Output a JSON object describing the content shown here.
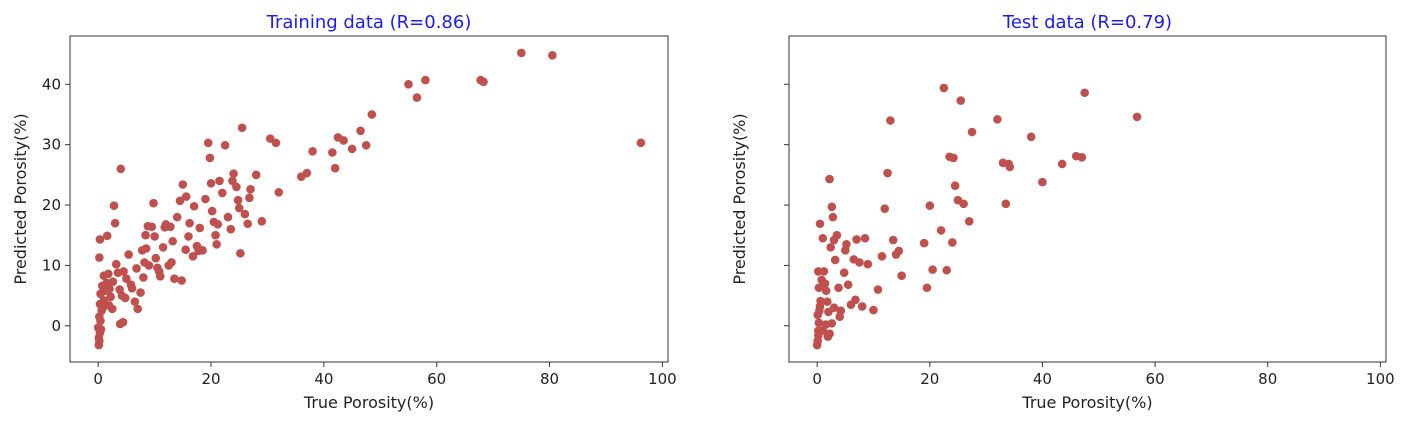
{
  "point_color": "#c0504d",
  "title_color": "#1a1aff",
  "chart_data": [
    {
      "type": "scatter",
      "title": "Training data (R=0.86)",
      "xlabel": "True Porosity(%)",
      "ylabel": "Predicted Porosity(%)",
      "xlim": [
        -5,
        101
      ],
      "ylim": [
        -6,
        48
      ],
      "xticks": [
        0,
        20,
        40,
        60,
        80,
        100
      ],
      "yticks": [
        0,
        10,
        20,
        30,
        40
      ],
      "ytick_labels_shown": true,
      "grid": false,
      "points": [
        [
          0.1,
          -3.2
        ],
        [
          0.2,
          -2.5
        ],
        [
          0.1,
          -2.0
        ],
        [
          0.3,
          -1.2
        ],
        [
          0.0,
          -0.3
        ],
        [
          0.4,
          0.8
        ],
        [
          0.5,
          -0.6
        ],
        [
          0.2,
          1.5
        ],
        [
          0.6,
          2.5
        ],
        [
          0.3,
          3.6
        ],
        [
          0.8,
          3.0
        ],
        [
          1.0,
          4.2
        ],
        [
          0.4,
          5.3
        ],
        [
          1.2,
          5.8
        ],
        [
          0.7,
          6.6
        ],
        [
          1.5,
          7.1
        ],
        [
          0.2,
          11.3
        ],
        [
          0.3,
          14.3
        ],
        [
          1.6,
          14.9
        ],
        [
          1.0,
          8.3
        ],
        [
          1.8,
          8.6
        ],
        [
          2.0,
          6.1
        ],
        [
          2.2,
          4.8
        ],
        [
          1.9,
          3.4
        ],
        [
          2.5,
          2.8
        ],
        [
          2.8,
          19.9
        ],
        [
          3.0,
          17.0
        ],
        [
          4.0,
          26.0
        ],
        [
          3.2,
          10.2
        ],
        [
          3.5,
          8.8
        ],
        [
          2.6,
          7.3
        ],
        [
          3.8,
          6.0
        ],
        [
          4.2,
          5.0
        ],
        [
          4.5,
          9.0
        ],
        [
          5.0,
          7.8
        ],
        [
          5.4,
          11.8
        ],
        [
          4.8,
          4.6
        ],
        [
          3.9,
          0.3
        ],
        [
          4.4,
          0.6
        ],
        [
          6.0,
          6.2
        ],
        [
          6.5,
          4.0
        ],
        [
          7.0,
          2.8
        ],
        [
          7.5,
          5.5
        ],
        [
          8.0,
          8.0
        ],
        [
          8.2,
          10.5
        ],
        [
          8.5,
          12.8
        ],
        [
          8.8,
          16.5
        ],
        [
          9.5,
          16.4
        ],
        [
          9.8,
          20.3
        ],
        [
          10.0,
          14.8
        ],
        [
          10.2,
          11.2
        ],
        [
          10.5,
          9.6
        ],
        [
          11.0,
          8.2
        ],
        [
          11.5,
          13.0
        ],
        [
          12.0,
          16.8
        ],
        [
          12.5,
          10.0
        ],
        [
          13.0,
          10.5
        ],
        [
          13.5,
          7.8
        ],
        [
          14.0,
          18.0
        ],
        [
          14.5,
          20.7
        ],
        [
          15.0,
          23.4
        ],
        [
          15.5,
          12.6
        ],
        [
          16.0,
          14.8
        ],
        [
          16.2,
          17.0
        ],
        [
          16.8,
          11.5
        ],
        [
          17.0,
          19.8
        ],
        [
          17.5,
          13.2
        ],
        [
          18.0,
          16.2
        ],
        [
          18.5,
          12.5
        ],
        [
          19.0,
          21.0
        ],
        [
          19.5,
          30.3
        ],
        [
          19.8,
          27.8
        ],
        [
          20.0,
          23.6
        ],
        [
          20.2,
          19.0
        ],
        [
          20.5,
          17.2
        ],
        [
          20.8,
          15.0
        ],
        [
          21.0,
          13.5
        ],
        [
          21.5,
          24.0
        ],
        [
          22.0,
          22.0
        ],
        [
          22.5,
          29.9
        ],
        [
          23.0,
          18.0
        ],
        [
          23.5,
          16.0
        ],
        [
          24.0,
          25.2
        ],
        [
          24.5,
          23.0
        ],
        [
          25.0,
          19.5
        ],
        [
          25.2,
          12.0
        ],
        [
          25.5,
          32.8
        ],
        [
          26.0,
          18.5
        ],
        [
          26.5,
          16.9
        ],
        [
          27.0,
          22.6
        ],
        [
          28.0,
          25.0
        ],
        [
          29.0,
          17.3
        ],
        [
          30.5,
          31.0
        ],
        [
          31.5,
          30.3
        ],
        [
          32.0,
          22.1
        ],
        [
          36.0,
          24.7
        ],
        [
          37.0,
          25.3
        ],
        [
          38.0,
          28.9
        ],
        [
          41.5,
          28.7
        ],
        [
          42.0,
          26.1
        ],
        [
          42.5,
          31.2
        ],
        [
          43.5,
          30.7
        ],
        [
          45.0,
          29.3
        ],
        [
          46.5,
          32.3
        ],
        [
          47.5,
          29.9
        ],
        [
          48.5,
          35.0
        ],
        [
          55.0,
          40.0
        ],
        [
          56.5,
          37.8
        ],
        [
          58.0,
          40.7
        ],
        [
          67.8,
          40.7
        ],
        [
          68.3,
          40.4
        ],
        [
          75.0,
          45.2
        ],
        [
          80.5,
          44.8
        ],
        [
          96.2,
          30.3
        ],
        [
          11.8,
          16.3
        ],
        [
          13.2,
          14.0
        ],
        [
          14.8,
          7.5
        ],
        [
          15.6,
          21.4
        ],
        [
          17.8,
          12.4
        ],
        [
          21.2,
          16.8
        ],
        [
          23.8,
          24.0
        ],
        [
          24.8,
          20.8
        ],
        [
          26.8,
          21.2
        ],
        [
          9.0,
          10.0
        ],
        [
          10.8,
          9.0
        ],
        [
          12.8,
          16.4
        ],
        [
          7.8,
          12.5
        ],
        [
          8.4,
          15.0
        ],
        [
          6.8,
          9.5
        ],
        [
          5.8,
          6.8
        ]
      ]
    },
    {
      "type": "scatter",
      "title": "Test data (R=0.79)",
      "xlabel": "True Porosity(%)",
      "ylabel": "Predicted Porosity(%)",
      "xlim": [
        -5,
        101
      ],
      "ylim": [
        -6,
        48
      ],
      "xticks": [
        0,
        20,
        40,
        60,
        80,
        100
      ],
      "yticks": [
        0,
        10,
        20,
        30,
        40
      ],
      "ytick_labels_shown": false,
      "grid": false,
      "points": [
        [
          0.0,
          -3.2
        ],
        [
          0.1,
          -2.5
        ],
        [
          0.2,
          -1.6
        ],
        [
          0.2,
          -0.8
        ],
        [
          0.3,
          0.5
        ],
        [
          0.1,
          1.8
        ],
        [
          0.4,
          2.5
        ],
        [
          0.5,
          3.2
        ],
        [
          0.6,
          4.1
        ],
        [
          0.3,
          6.3
        ],
        [
          0.8,
          7.6
        ],
        [
          0.2,
          9.0
        ],
        [
          0.5,
          16.9
        ],
        [
          1.0,
          14.5
        ],
        [
          1.2,
          9.0
        ],
        [
          1.4,
          7.0
        ],
        [
          1.6,
          5.8
        ],
        [
          1.8,
          4.0
        ],
        [
          1.5,
          0.2
        ],
        [
          1.9,
          -1.8
        ],
        [
          2.2,
          -1.3
        ],
        [
          2.0,
          2.3
        ],
        [
          2.4,
          13.0
        ],
        [
          2.2,
          24.3
        ],
        [
          2.6,
          19.7
        ],
        [
          2.8,
          18.0
        ],
        [
          3.0,
          14.2
        ],
        [
          3.5,
          15.0
        ],
        [
          3.2,
          10.9
        ],
        [
          3.8,
          6.3
        ],
        [
          3.0,
          3.0
        ],
        [
          2.6,
          0.4
        ],
        [
          4.2,
          2.5
        ],
        [
          4.8,
          8.8
        ],
        [
          5.0,
          12.5
        ],
        [
          5.5,
          6.8
        ],
        [
          6.0,
          3.5
        ],
        [
          6.5,
          11.0
        ],
        [
          7.0,
          14.3
        ],
        [
          7.5,
          10.5
        ],
        [
          8.0,
          3.2
        ],
        [
          8.5,
          14.5
        ],
        [
          9.0,
          10.2
        ],
        [
          10.0,
          2.6
        ],
        [
          10.8,
          6.0
        ],
        [
          11.5,
          11.5
        ],
        [
          12.0,
          19.4
        ],
        [
          12.5,
          25.3
        ],
        [
          13.0,
          34.0
        ],
        [
          13.5,
          14.2
        ],
        [
          14.0,
          11.8
        ],
        [
          14.5,
          12.4
        ],
        [
          15.0,
          8.3
        ],
        [
          19.0,
          13.7
        ],
        [
          19.5,
          6.3
        ],
        [
          20.0,
          19.9
        ],
        [
          20.5,
          9.3
        ],
        [
          22.0,
          15.8
        ],
        [
          22.5,
          39.4
        ],
        [
          23.0,
          9.2
        ],
        [
          23.5,
          28.0
        ],
        [
          24.0,
          13.8
        ],
        [
          24.2,
          27.8
        ],
        [
          24.5,
          23.2
        ],
        [
          25.0,
          20.8
        ],
        [
          25.5,
          37.3
        ],
        [
          26.0,
          20.2
        ],
        [
          27.0,
          17.3
        ],
        [
          27.5,
          32.1
        ],
        [
          32.0,
          34.2
        ],
        [
          33.0,
          27.0
        ],
        [
          33.5,
          20.2
        ],
        [
          34.0,
          26.8
        ],
        [
          34.2,
          26.3
        ],
        [
          38.0,
          31.3
        ],
        [
          40.0,
          23.8
        ],
        [
          43.5,
          26.8
        ],
        [
          46.0,
          28.1
        ],
        [
          47.0,
          27.9
        ],
        [
          47.5,
          38.6
        ],
        [
          56.8,
          34.6
        ],
        [
          5.2,
          13.5
        ],
        [
          4.0,
          1.5
        ],
        [
          6.8,
          4.3
        ],
        [
          1.0,
          -0.8
        ]
      ]
    }
  ]
}
